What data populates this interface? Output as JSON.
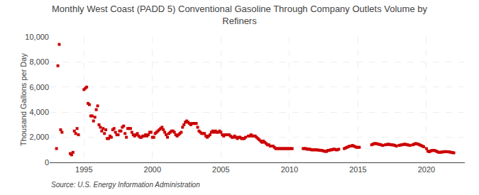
{
  "chart_data": {
    "type": "scatter",
    "title": "Monthly West Coast (PADD 5) Conventional Gasoline Through Company Outlets Volume by\nRefiners",
    "ylabel": "Thousand Gallons per Day",
    "annotations": [
      "Source: U.S. Energy Information Administration"
    ],
    "color": "#cc0000",
    "marker": "square",
    "grid": true,
    "xlim": [
      1992.5,
      2022.8
    ],
    "xticks": [
      1995,
      2000,
      2005,
      2010,
      2015,
      2020
    ],
    "ylim": [
      0,
      10000
    ],
    "yticks": [
      0,
      {
        "value": 2000,
        "label": "2,000"
      },
      {
        "value": 4000,
        "label": "4,000"
      },
      {
        "value": 6000,
        "label": "6,000"
      },
      {
        "value": 8000,
        "label": "8,000"
      },
      {
        "value": 10000,
        "label": "10,000"
      }
    ],
    "x": [
      1993.0,
      1993.1,
      1993.2,
      1993.3,
      1993.4,
      1994.0,
      1994.1,
      1994.2,
      1994.3,
      1994.4,
      1994.5,
      1994.6,
      1995.0,
      1995.1,
      1995.2,
      1995.3,
      1995.4,
      1995.5,
      1995.6,
      1995.7,
      1995.8,
      1995.9,
      1996.0,
      1996.1,
      1996.2,
      1996.3,
      1996.4,
      1996.5,
      1996.6,
      1996.7,
      1996.8,
      1996.9,
      1997.0,
      1997.1,
      1997.2,
      1997.3,
      1997.4,
      1997.5,
      1997.6,
      1997.7,
      1997.8,
      1997.9,
      1998.0,
      1998.1,
      1998.2,
      1998.3,
      1998.4,
      1998.5,
      1998.6,
      1998.7,
      1998.8,
      1998.9,
      1999.0,
      1999.1,
      1999.2,
      1999.3,
      1999.4,
      1999.5,
      1999.6,
      1999.7,
      1999.8,
      1999.9,
      2000.0,
      2000.1,
      2000.2,
      2000.3,
      2000.4,
      2000.5,
      2000.6,
      2000.7,
      2000.8,
      2000.9,
      2001.0,
      2001.1,
      2001.2,
      2001.3,
      2001.4,
      2001.5,
      2001.6,
      2001.7,
      2001.8,
      2001.9,
      2002.0,
      2002.1,
      2002.2,
      2002.3,
      2002.4,
      2002.5,
      2002.6,
      2002.7,
      2002.8,
      2002.9,
      2003.0,
      2003.1,
      2003.2,
      2003.3,
      2003.4,
      2003.5,
      2003.6,
      2003.7,
      2003.8,
      2003.9,
      2004.0,
      2004.1,
      2004.2,
      2004.3,
      2004.4,
      2004.5,
      2004.6,
      2004.7,
      2004.8,
      2004.9,
      2005.0,
      2005.1,
      2005.2,
      2005.3,
      2005.4,
      2005.5,
      2005.6,
      2005.7,
      2005.8,
      2005.9,
      2006.0,
      2006.1,
      2006.2,
      2006.3,
      2006.4,
      2006.5,
      2006.6,
      2006.7,
      2006.8,
      2007.0,
      2007.1,
      2007.2,
      2007.3,
      2007.4,
      2007.5,
      2007.6,
      2007.7,
      2007.8,
      2007.9,
      2008.0,
      2008.1,
      2008.2,
      2008.3,
      2008.4,
      2008.5,
      2008.6,
      2008.7,
      2008.8,
      2008.9,
      2009.0,
      2009.1,
      2009.2,
      2009.3,
      2009.4,
      2009.5,
      2009.6,
      2009.7,
      2009.8,
      2009.9,
      2010.0,
      2010.1,
      2010.2,
      2011.0,
      2011.1,
      2011.2,
      2011.3,
      2011.4,
      2011.5,
      2011.6,
      2011.7,
      2011.8,
      2011.9,
      2012.0,
      2012.1,
      2012.2,
      2012.3,
      2012.4,
      2012.5,
      2012.6,
      2012.7,
      2012.8,
      2012.9,
      2013.0,
      2013.1,
      2013.2,
      2013.3,
      2013.4,
      2013.5,
      2013.6,
      2014.0,
      2014.1,
      2014.2,
      2014.3,
      2014.4,
      2014.5,
      2014.6,
      2014.7,
      2014.8,
      2014.9,
      2015.0,
      2015.1,
      2016.0,
      2016.1,
      2016.2,
      2016.3,
      2016.4,
      2016.5,
      2016.6,
      2016.7,
      2016.8,
      2017.0,
      2017.1,
      2017.2,
      2017.3,
      2017.4,
      2017.5,
      2017.6,
      2017.7,
      2017.8,
      2018.0,
      2018.1,
      2018.2,
      2018.3,
      2018.4,
      2018.5,
      2018.6,
      2018.7,
      2018.8,
      2019.0,
      2019.1,
      2019.2,
      2019.3,
      2019.4,
      2019.5,
      2019.6,
      2019.7,
      2019.8,
      2020.0,
      2020.1,
      2020.2,
      2020.3,
      2020.4,
      2020.5,
      2020.6,
      2020.7,
      2020.8,
      2020.9,
      2021.0,
      2021.1,
      2021.2,
      2021.3,
      2021.4,
      2021.5,
      2021.6,
      2021.7,
      2021.8,
      2021.9,
      2022.0
    ],
    "values": [
      1100,
      7700,
      9400,
      2600,
      2400,
      700,
      600,
      800,
      2500,
      2300,
      2700,
      2200,
      5800,
      5900,
      6000,
      4700,
      4600,
      3700,
      3700,
      3300,
      3600,
      4200,
      4500,
      3000,
      2800,
      2500,
      2700,
      2300,
      2600,
      1900,
      1900,
      2100,
      2000,
      2600,
      2700,
      2400,
      2200,
      2200,
      2500,
      2500,
      2800,
      2900,
      2300,
      2000,
      2700,
      2700,
      2700,
      2400,
      2200,
      2100,
      2200,
      2300,
      2100,
      2000,
      2000,
      2100,
      2100,
      2200,
      2100,
      2200,
      2400,
      2400,
      2000,
      2000,
      2300,
      2400,
      2500,
      2600,
      2700,
      2800,
      2600,
      2400,
      2200,
      2000,
      2300,
      2400,
      2500,
      2500,
      2400,
      2200,
      2100,
      2200,
      2300,
      2400,
      2800,
      3000,
      3200,
      3300,
      3200,
      3100,
      3000,
      3100,
      3100,
      3100,
      3100,
      2800,
      2500,
      2400,
      2300,
      2300,
      2300,
      2100,
      2000,
      2100,
      2200,
      2400,
      2500,
      2400,
      2500,
      2400,
      2400,
      2500,
      2400,
      2200,
      2100,
      2200,
      2200,
      2200,
      2200,
      2100,
      2000,
      2000,
      2100,
      2000,
      1900,
      2000,
      2000,
      1900,
      1900,
      1900,
      2000,
      2100,
      2100,
      2200,
      2100,
      2100,
      2100,
      2000,
      1900,
      1800,
      1700,
      1600,
      1700,
      1600,
      1500,
      1400,
      1400,
      1300,
      1300,
      1300,
      1200,
      1100,
      1100,
      1100,
      1100,
      1100,
      1100,
      1100,
      1100,
      1100,
      1100,
      1100,
      1100,
      1100,
      1100,
      1100,
      1100,
      1050,
      1050,
      1050,
      1000,
      1000,
      1000,
      1000,
      1000,
      980,
      970,
      950,
      950,
      900,
      880,
      870,
      950,
      950,
      1000,
      1000,
      1050,
      1050,
      1000,
      1000,
      1050,
      1100,
      1150,
      1200,
      1250,
      1300,
      1300,
      1350,
      1300,
      1250,
      1200,
      1200,
      1200,
      1400,
      1450,
      1500,
      1500,
      1480,
      1450,
      1420,
      1400,
      1350,
      1400,
      1420,
      1450,
      1430,
      1400,
      1400,
      1380,
      1350,
      1300,
      1350,
      1380,
      1400,
      1420,
      1450,
      1430,
      1400,
      1380,
      1350,
      1400,
      1450,
      1500,
      1480,
      1450,
      1400,
      1350,
      1300,
      1250,
      1100,
      900,
      850,
      900,
      950,
      950,
      950,
      900,
      850,
      800,
      800,
      820,
      830,
      850,
      860,
      850,
      840,
      830,
      800,
      780,
      760
    ]
  }
}
